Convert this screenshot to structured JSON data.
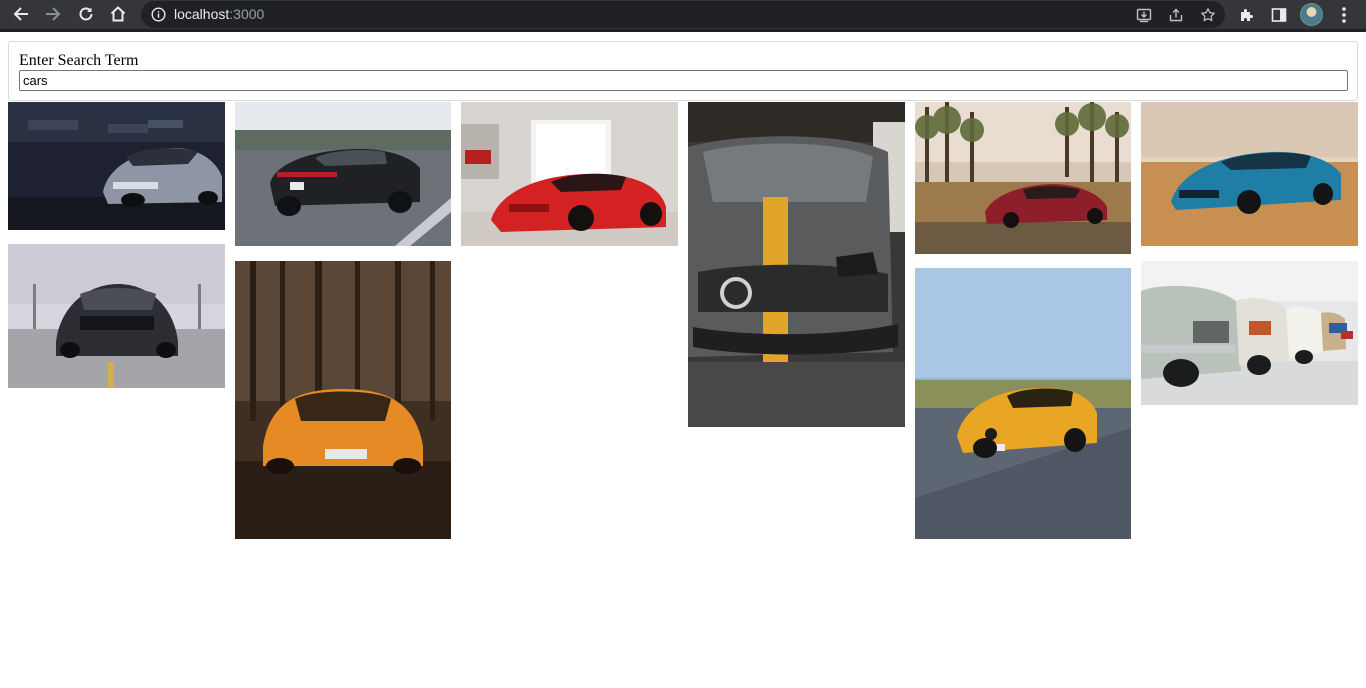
{
  "browser": {
    "url_host": "localhost",
    "url_port": ":3000",
    "icons": {
      "back": "arrow-left-icon",
      "forward": "arrow-right-icon",
      "reload": "reload-icon",
      "home": "home-icon",
      "info": "info-icon",
      "install": "install-app-icon",
      "share": "share-icon",
      "bookmark": "star-icon",
      "extensions": "puzzle-icon",
      "side_panel": "side-panel-icon",
      "menu": "kebab-menu-icon"
    }
  },
  "search": {
    "label": "Enter Search Term",
    "value": "cars"
  },
  "photos": [
    {
      "subject": "dark grey sports car in a dim garage"
    },
    {
      "subject": "black sedan on a highway"
    },
    {
      "subject": "red supercar in a showroom"
    },
    {
      "subject": "grey coupe with yellow stripe, front view"
    },
    {
      "subject": "red coupe in a pine forest clearing"
    },
    {
      "subject": "blue muscle car in the desert"
    },
    {
      "subject": "dark muscle car on a parking lot"
    },
    {
      "subject": "orange supercar in a forest"
    },
    {
      "subject": "yellow coupe on a road"
    },
    {
      "subject": "row of vintage cars in a white garage"
    }
  ]
}
